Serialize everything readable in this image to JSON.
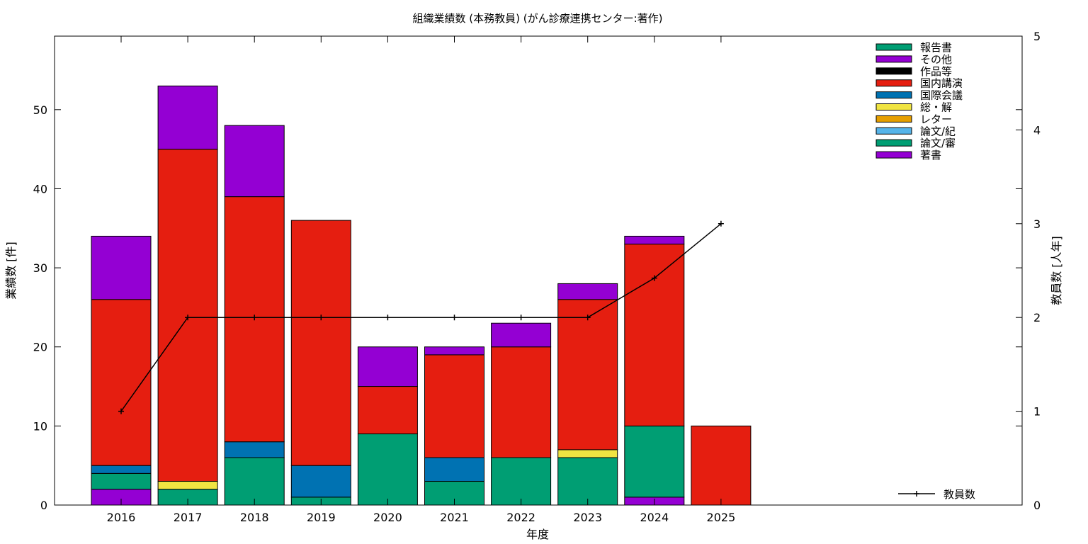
{
  "chart_data": {
    "type": "bar",
    "stacked": true,
    "title": "組織業績数 (本務教員) (がん診療連携センター:著作)",
    "xlabel": "年度",
    "ylabel": "業績数 [件]",
    "y2label": "教員数 [人年]",
    "ylim": [
      0,
      59.3
    ],
    "y2lim": [
      0,
      5
    ],
    "yticks": [
      0,
      10,
      20,
      30,
      40,
      50
    ],
    "y2ticks": [
      0,
      1,
      2,
      3,
      4,
      5
    ],
    "grid": false,
    "legend_position": "top-right",
    "categories": [
      "2016",
      "2017",
      "2018",
      "2019",
      "2020",
      "2021",
      "2022",
      "2023",
      "2024",
      "2025"
    ],
    "series": [
      {
        "name": "著書",
        "color": "#9400d3",
        "values": [
          2,
          0,
          0,
          0,
          0,
          0,
          0,
          0,
          1,
          0
        ]
      },
      {
        "name": "論文/審",
        "color": "#009e73",
        "values": [
          2,
          2,
          6,
          1,
          9,
          3,
          6,
          6,
          9,
          0
        ]
      },
      {
        "name": "論文/紀",
        "color": "#56b4e9",
        "values": [
          0,
          0,
          0,
          0,
          0,
          0,
          0,
          0,
          0,
          0
        ]
      },
      {
        "name": "レター",
        "color": "#e69f00",
        "values": [
          0,
          0,
          0,
          0,
          0,
          0,
          0,
          0,
          0,
          0
        ]
      },
      {
        "name": "総・解",
        "color": "#f0e442",
        "values": [
          0,
          1,
          0,
          0,
          0,
          0,
          0,
          1,
          0,
          0
        ]
      },
      {
        "name": "国際会議",
        "color": "#0072b2",
        "values": [
          1,
          0,
          2,
          4,
          0,
          3,
          0,
          0,
          0,
          0
        ]
      },
      {
        "name": "国内講演",
        "color": "#e51e10",
        "values": [
          21,
          42,
          31,
          31,
          6,
          13,
          14,
          19,
          23,
          10
        ]
      },
      {
        "name": "作品等",
        "color": "#000000",
        "values": [
          0,
          0,
          0,
          0,
          0,
          0,
          0,
          0,
          0,
          0
        ]
      },
      {
        "name": "その他",
        "color": "#9400d3",
        "values": [
          8,
          8,
          9,
          0,
          5,
          1,
          3,
          2,
          1,
          0
        ]
      },
      {
        "name": "報告書",
        "color": "#009e73",
        "values": [
          0,
          0,
          0,
          0,
          0,
          0,
          0,
          0,
          0,
          0
        ]
      }
    ],
    "legend_order": [
      "報告書",
      "その他",
      "作品等",
      "国内講演",
      "国際会議",
      "総・解",
      "レター",
      "論文/紀",
      "論文/審",
      "著書"
    ],
    "line_series": {
      "name": "教員数",
      "axis": "y2",
      "color": "#000000",
      "values": [
        1,
        2,
        2,
        2,
        2,
        2,
        2,
        2,
        2.42,
        3
      ]
    }
  }
}
